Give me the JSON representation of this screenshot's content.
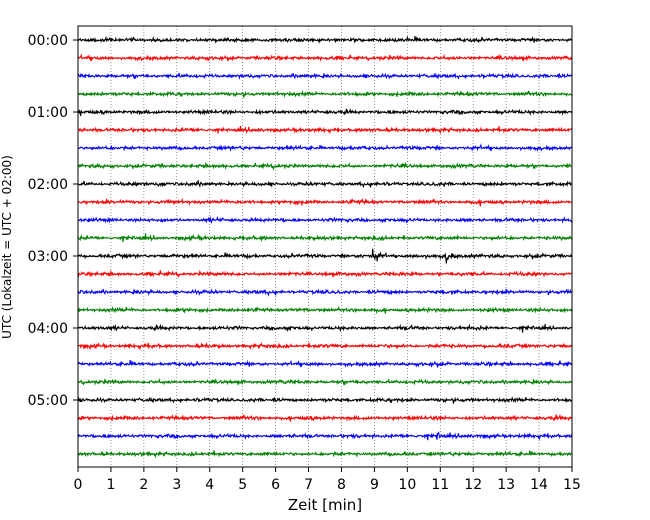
{
  "chart_data": {
    "type": "line",
    "title": "",
    "xlabel": "Zeit  [min]",
    "ylabel": "UTC (Lokalzeit = UTC + 02:00)",
    "xlim": [
      0,
      15
    ],
    "x_ticks": [
      "0",
      "1",
      "2",
      "3",
      "4",
      "5",
      "6",
      "7",
      "8",
      "9",
      "10",
      "11",
      "12",
      "13",
      "14",
      "15"
    ],
    "y_ticks": [
      "00:00",
      "01:00",
      "02:00",
      "03:00",
      "04:00",
      "05:00"
    ],
    "trace_interval_min": 15,
    "trace_start_times": [
      "00:00",
      "00:15",
      "00:30",
      "00:45",
      "01:00",
      "01:15",
      "01:30",
      "01:45",
      "02:00",
      "02:15",
      "02:30",
      "02:45",
      "03:00",
      "03:15",
      "03:30",
      "03:45",
      "04:00",
      "04:15",
      "04:30",
      "04:45",
      "05:00",
      "05:15",
      "05:30",
      "05:45"
    ],
    "trace_colors": [
      "#000000",
      "#ff0000",
      "#0000ff",
      "#008000"
    ],
    "grid": "vertical dotted lines at each minute",
    "events": [
      {
        "trace_start": "03:00",
        "minute": 8.95,
        "relative_amplitude": 1.0
      },
      {
        "trace_start": "03:00",
        "minute": 11.2,
        "relative_amplitude": 0.7
      },
      {
        "trace_start": "05:30",
        "minute": 10.9,
        "relative_amplitude": 0.35
      },
      {
        "trace_start": "02:00",
        "minute": 2.5,
        "relative_amplitude": 0.3
      }
    ]
  }
}
